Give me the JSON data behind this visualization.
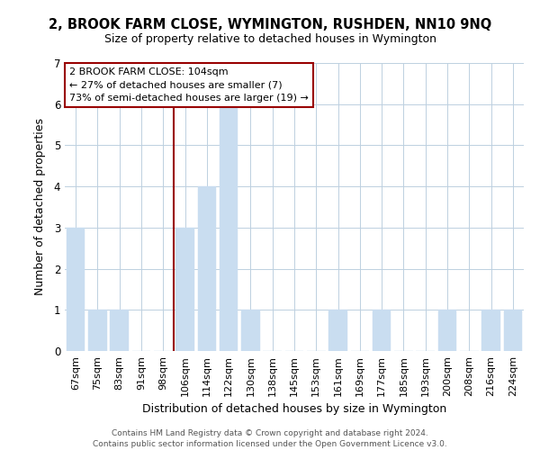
{
  "title": "2, BROOK FARM CLOSE, WYMINGTON, RUSHDEN, NN10 9NQ",
  "subtitle": "Size of property relative to detached houses in Wymington",
  "xlabel": "Distribution of detached houses by size in Wymington",
  "ylabel": "Number of detached properties",
  "bar_labels": [
    "67sqm",
    "75sqm",
    "83sqm",
    "91sqm",
    "98sqm",
    "106sqm",
    "114sqm",
    "122sqm",
    "130sqm",
    "138sqm",
    "145sqm",
    "153sqm",
    "161sqm",
    "169sqm",
    "177sqm",
    "185sqm",
    "193sqm",
    "200sqm",
    "208sqm",
    "216sqm",
    "224sqm"
  ],
  "bar_values": [
    3,
    1,
    1,
    0,
    0,
    3,
    4,
    6,
    1,
    0,
    0,
    0,
    1,
    0,
    1,
    0,
    0,
    1,
    0,
    1,
    1
  ],
  "bar_color": "#c9ddf0",
  "vline_color": "#990000",
  "vline_x_index": 5,
  "annotation_title": "2 BROOK FARM CLOSE: 104sqm",
  "annotation_line1": "← 27% of detached houses are smaller (7)",
  "annotation_line2": "73% of semi-detached houses are larger (19) →",
  "annotation_box_color": "#ffffff",
  "annotation_box_edge": "#990000",
  "ylim": [
    0,
    7
  ],
  "yticks": [
    0,
    1,
    2,
    3,
    4,
    5,
    6,
    7
  ],
  "footer1": "Contains HM Land Registry data © Crown copyright and database right 2024.",
  "footer2": "Contains public sector information licensed under the Open Government Licence v3.0.",
  "bg_color": "#ffffff",
  "grid_color": "#bdd0e0",
  "title_fontsize": 10.5,
  "subtitle_fontsize": 9,
  "xlabel_fontsize": 9,
  "ylabel_fontsize": 9
}
